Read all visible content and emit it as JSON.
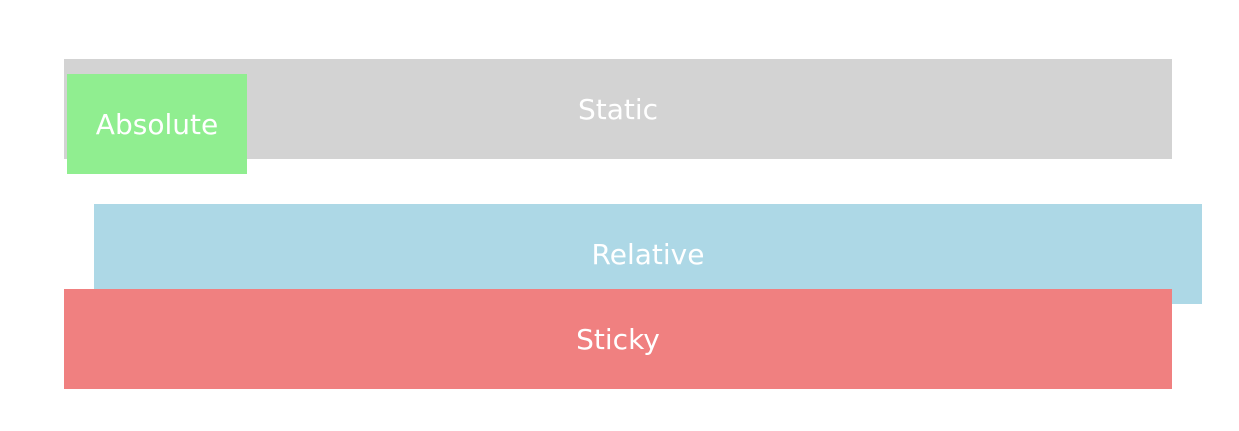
{
  "boxes": {
    "static": {
      "label": "Static",
      "color": "#d3d3d3"
    },
    "relative": {
      "label": "Relative",
      "color": "#add8e6"
    },
    "sticky": {
      "label": "Sticky",
      "color": "#f08080"
    },
    "absolute": {
      "label": "Absolute",
      "color": "#90ee90"
    }
  }
}
